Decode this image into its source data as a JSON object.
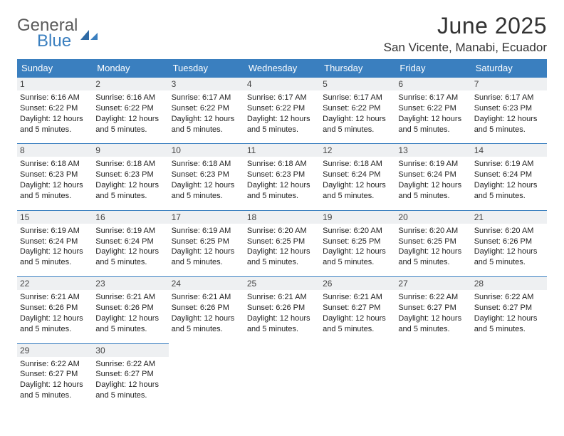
{
  "logo": {
    "word1": "General",
    "word2": "Blue"
  },
  "header": {
    "title": "June 2025",
    "subtitle": "San Vicente, Manabi, Ecuador"
  },
  "colors": {
    "accent": "#3a7fbf",
    "dayrow_bg": "#eef0f2",
    "text": "#222222",
    "logo_gray": "#5a5a5a"
  },
  "weekdays": [
    "Sunday",
    "Monday",
    "Tuesday",
    "Wednesday",
    "Thursday",
    "Friday",
    "Saturday"
  ],
  "weeks": [
    [
      {
        "n": "1",
        "sr": "Sunrise: 6:16 AM",
        "ss": "Sunset: 6:22 PM",
        "d1": "Daylight: 12 hours",
        "d2": "and 5 minutes."
      },
      {
        "n": "2",
        "sr": "Sunrise: 6:16 AM",
        "ss": "Sunset: 6:22 PM",
        "d1": "Daylight: 12 hours",
        "d2": "and 5 minutes."
      },
      {
        "n": "3",
        "sr": "Sunrise: 6:17 AM",
        "ss": "Sunset: 6:22 PM",
        "d1": "Daylight: 12 hours",
        "d2": "and 5 minutes."
      },
      {
        "n": "4",
        "sr": "Sunrise: 6:17 AM",
        "ss": "Sunset: 6:22 PM",
        "d1": "Daylight: 12 hours",
        "d2": "and 5 minutes."
      },
      {
        "n": "5",
        "sr": "Sunrise: 6:17 AM",
        "ss": "Sunset: 6:22 PM",
        "d1": "Daylight: 12 hours",
        "d2": "and 5 minutes."
      },
      {
        "n": "6",
        "sr": "Sunrise: 6:17 AM",
        "ss": "Sunset: 6:22 PM",
        "d1": "Daylight: 12 hours",
        "d2": "and 5 minutes."
      },
      {
        "n": "7",
        "sr": "Sunrise: 6:17 AM",
        "ss": "Sunset: 6:23 PM",
        "d1": "Daylight: 12 hours",
        "d2": "and 5 minutes."
      }
    ],
    [
      {
        "n": "8",
        "sr": "Sunrise: 6:18 AM",
        "ss": "Sunset: 6:23 PM",
        "d1": "Daylight: 12 hours",
        "d2": "and 5 minutes."
      },
      {
        "n": "9",
        "sr": "Sunrise: 6:18 AM",
        "ss": "Sunset: 6:23 PM",
        "d1": "Daylight: 12 hours",
        "d2": "and 5 minutes."
      },
      {
        "n": "10",
        "sr": "Sunrise: 6:18 AM",
        "ss": "Sunset: 6:23 PM",
        "d1": "Daylight: 12 hours",
        "d2": "and 5 minutes."
      },
      {
        "n": "11",
        "sr": "Sunrise: 6:18 AM",
        "ss": "Sunset: 6:23 PM",
        "d1": "Daylight: 12 hours",
        "d2": "and 5 minutes."
      },
      {
        "n": "12",
        "sr": "Sunrise: 6:18 AM",
        "ss": "Sunset: 6:24 PM",
        "d1": "Daylight: 12 hours",
        "d2": "and 5 minutes."
      },
      {
        "n": "13",
        "sr": "Sunrise: 6:19 AM",
        "ss": "Sunset: 6:24 PM",
        "d1": "Daylight: 12 hours",
        "d2": "and 5 minutes."
      },
      {
        "n": "14",
        "sr": "Sunrise: 6:19 AM",
        "ss": "Sunset: 6:24 PM",
        "d1": "Daylight: 12 hours",
        "d2": "and 5 minutes."
      }
    ],
    [
      {
        "n": "15",
        "sr": "Sunrise: 6:19 AM",
        "ss": "Sunset: 6:24 PM",
        "d1": "Daylight: 12 hours",
        "d2": "and 5 minutes."
      },
      {
        "n": "16",
        "sr": "Sunrise: 6:19 AM",
        "ss": "Sunset: 6:24 PM",
        "d1": "Daylight: 12 hours",
        "d2": "and 5 minutes."
      },
      {
        "n": "17",
        "sr": "Sunrise: 6:19 AM",
        "ss": "Sunset: 6:25 PM",
        "d1": "Daylight: 12 hours",
        "d2": "and 5 minutes."
      },
      {
        "n": "18",
        "sr": "Sunrise: 6:20 AM",
        "ss": "Sunset: 6:25 PM",
        "d1": "Daylight: 12 hours",
        "d2": "and 5 minutes."
      },
      {
        "n": "19",
        "sr": "Sunrise: 6:20 AM",
        "ss": "Sunset: 6:25 PM",
        "d1": "Daylight: 12 hours",
        "d2": "and 5 minutes."
      },
      {
        "n": "20",
        "sr": "Sunrise: 6:20 AM",
        "ss": "Sunset: 6:25 PM",
        "d1": "Daylight: 12 hours",
        "d2": "and 5 minutes."
      },
      {
        "n": "21",
        "sr": "Sunrise: 6:20 AM",
        "ss": "Sunset: 6:26 PM",
        "d1": "Daylight: 12 hours",
        "d2": "and 5 minutes."
      }
    ],
    [
      {
        "n": "22",
        "sr": "Sunrise: 6:21 AM",
        "ss": "Sunset: 6:26 PM",
        "d1": "Daylight: 12 hours",
        "d2": "and 5 minutes."
      },
      {
        "n": "23",
        "sr": "Sunrise: 6:21 AM",
        "ss": "Sunset: 6:26 PM",
        "d1": "Daylight: 12 hours",
        "d2": "and 5 minutes."
      },
      {
        "n": "24",
        "sr": "Sunrise: 6:21 AM",
        "ss": "Sunset: 6:26 PM",
        "d1": "Daylight: 12 hours",
        "d2": "and 5 minutes."
      },
      {
        "n": "25",
        "sr": "Sunrise: 6:21 AM",
        "ss": "Sunset: 6:26 PM",
        "d1": "Daylight: 12 hours",
        "d2": "and 5 minutes."
      },
      {
        "n": "26",
        "sr": "Sunrise: 6:21 AM",
        "ss": "Sunset: 6:27 PM",
        "d1": "Daylight: 12 hours",
        "d2": "and 5 minutes."
      },
      {
        "n": "27",
        "sr": "Sunrise: 6:22 AM",
        "ss": "Sunset: 6:27 PM",
        "d1": "Daylight: 12 hours",
        "d2": "and 5 minutes."
      },
      {
        "n": "28",
        "sr": "Sunrise: 6:22 AM",
        "ss": "Sunset: 6:27 PM",
        "d1": "Daylight: 12 hours",
        "d2": "and 5 minutes."
      }
    ],
    [
      {
        "n": "29",
        "sr": "Sunrise: 6:22 AM",
        "ss": "Sunset: 6:27 PM",
        "d1": "Daylight: 12 hours",
        "d2": "and 5 minutes."
      },
      {
        "n": "30",
        "sr": "Sunrise: 6:22 AM",
        "ss": "Sunset: 6:27 PM",
        "d1": "Daylight: 12 hours",
        "d2": "and 5 minutes."
      },
      null,
      null,
      null,
      null,
      null
    ]
  ]
}
